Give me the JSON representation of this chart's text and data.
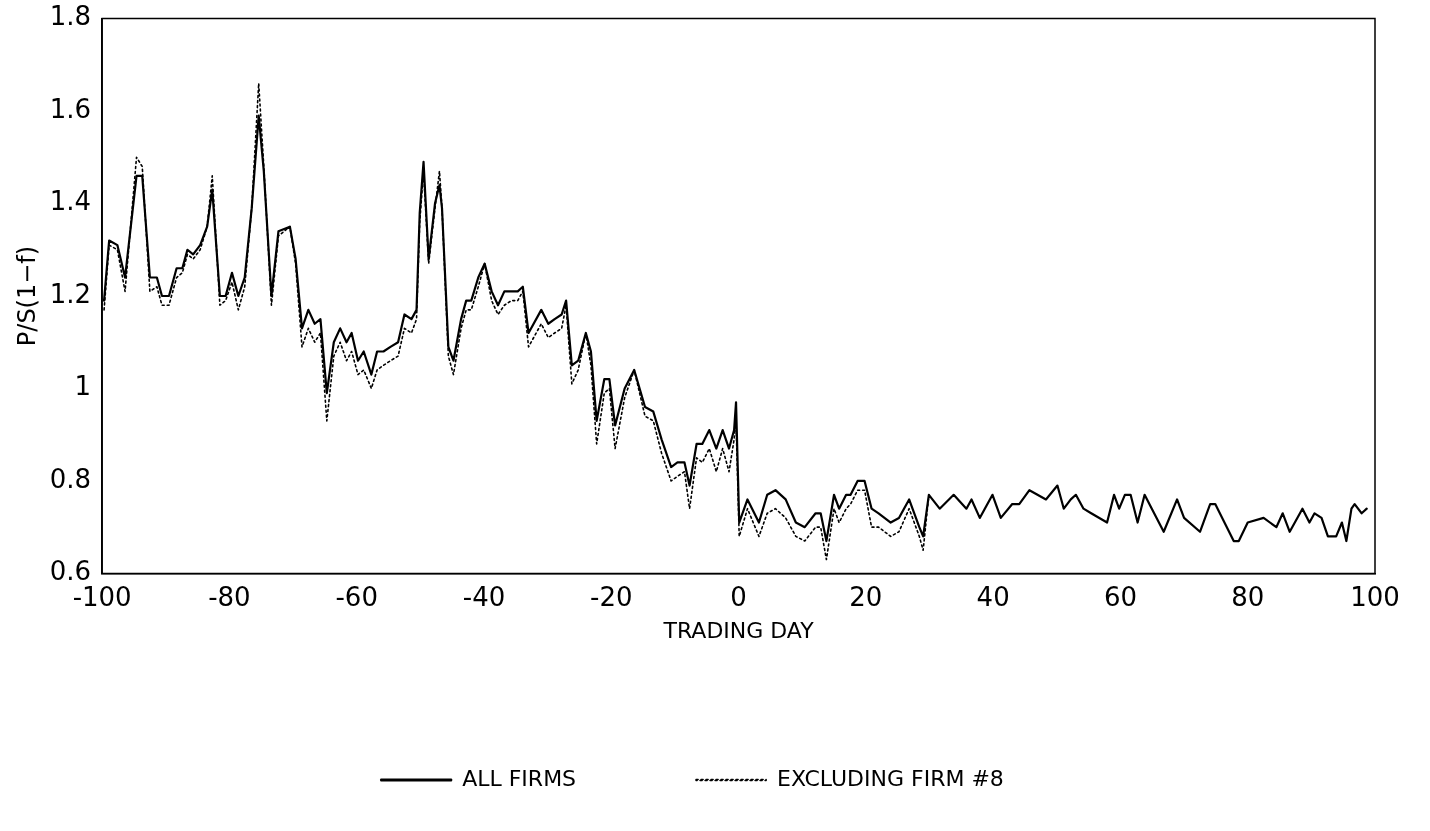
{
  "chart_data": {
    "type": "line",
    "xlabel": "TRADING DAY",
    "ylabel": "P/S(1−f)",
    "xlim": [
      -100,
      100
    ],
    "xticks": [
      -100,
      -80,
      -60,
      -40,
      -20,
      0,
      20,
      40,
      60,
      80,
      100
    ],
    "ylim": [
      0.6,
      1.8
    ],
    "yticks": [
      0.6,
      0.8,
      1,
      1.2,
      1.4,
      1.6,
      1.8
    ],
    "grid": false,
    "legend": "bottom",
    "marker": "none",
    "series": [
      {
        "name": "ALL FIRMS",
        "color": "#000000",
        "line_style": "solid",
        "x": [
          -99.7,
          -98.9,
          -97.6,
          -96.4,
          -94.6,
          -93.7,
          -92.5,
          -91.4,
          -90.6,
          -89.5,
          -88.3,
          -87.4,
          -86.6,
          -85.7,
          -84.6,
          -83.5,
          -82.7,
          -81.5,
          -80.6,
          -79.6,
          -78.6,
          -77.6,
          -76.5,
          -75.4,
          -74.6,
          -73.4,
          -72.3,
          -70.5,
          -69.6,
          -68.6,
          -67.6,
          -66.6,
          -65.7,
          -64.7,
          -63.6,
          -62.6,
          -61.6,
          -60.8,
          -59.8,
          -58.9,
          -57.7,
          -56.8,
          -55.8,
          -54.7,
          -53.5,
          -52.5,
          -51.4,
          -50.6,
          -50.1,
          -49.5,
          -48.7,
          -47.7,
          -47.0,
          -46.6,
          -45.6,
          -44.8,
          -43.6,
          -42.8,
          -42.0,
          -40.9,
          -39.9,
          -38.8,
          -37.8,
          -36.8,
          -35.7,
          -34.7,
          -33.9,
          -33.0,
          -31.0,
          -29.9,
          -28.9,
          -27.8,
          -27.1,
          -26.2,
          -25.2,
          -24.0,
          -23.2,
          -22.3,
          -21.1,
          -20.3,
          -19.4,
          -17.9,
          -16.4,
          -14.7,
          -13.4,
          -12.1,
          -10.6,
          -9.6,
          -8.5,
          -7.7,
          -6.6,
          -5.7,
          -4.6,
          -3.5,
          -2.5,
          -1.5,
          -0.7,
          -0.4,
          0.1,
          1.4,
          3.2,
          4.5,
          5.8,
          7.4,
          9.0,
          10.4,
          12.1,
          12.9,
          13.8,
          15.0,
          15.8,
          16.9,
          17.6,
          18.7,
          19.8,
          20.9,
          22.0,
          23.9,
          25.2,
          26.8,
          28.4,
          29.0,
          29.9,
          31.6,
          33.8,
          35.8,
          36.6,
          37.9,
          39.9,
          41.2,
          43.0,
          44.1,
          45.7,
          48.3,
          50.1,
          51.1,
          52.2,
          53.0,
          54.2,
          55.4,
          57.9,
          59.0,
          59.8,
          60.7,
          61.6,
          62.7,
          63.8,
          66.8,
          68.9,
          70.0,
          72.5,
          74.1,
          74.9,
          77.8,
          78.6,
          80.0,
          82.5,
          84.5,
          85.5,
          86.6,
          88.6,
          89.7,
          90.5,
          91.6,
          92.6,
          93.9,
          94.8,
          95.5,
          96.3,
          96.8,
          97.9,
          98.7
        ],
        "values": [
          1.19,
          1.32,
          1.31,
          1.24,
          1.46,
          1.46,
          1.24,
          1.24,
          1.2,
          1.2,
          1.26,
          1.26,
          1.3,
          1.29,
          1.31,
          1.35,
          1.43,
          1.2,
          1.2,
          1.25,
          1.2,
          1.24,
          1.39,
          1.59,
          1.47,
          1.2,
          1.34,
          1.35,
          1.28,
          1.13,
          1.17,
          1.14,
          1.15,
          0.99,
          1.1,
          1.13,
          1.1,
          1.12,
          1.06,
          1.08,
          1.03,
          1.08,
          1.08,
          1.09,
          1.1,
          1.16,
          1.15,
          1.17,
          1.38,
          1.49,
          1.28,
          1.4,
          1.44,
          1.39,
          1.09,
          1.06,
          1.15,
          1.19,
          1.19,
          1.24,
          1.27,
          1.21,
          1.18,
          1.21,
          1.21,
          1.21,
          1.22,
          1.12,
          1.17,
          1.14,
          1.15,
          1.16,
          1.19,
          1.05,
          1.06,
          1.12,
          1.08,
          0.93,
          1.02,
          1.02,
          0.92,
          1.0,
          1.04,
          0.96,
          0.95,
          0.89,
          0.83,
          0.84,
          0.84,
          0.79,
          0.88,
          0.88,
          0.91,
          0.87,
          0.91,
          0.87,
          0.91,
          0.97,
          0.71,
          0.76,
          0.71,
          0.77,
          0.78,
          0.76,
          0.71,
          0.7,
          0.73,
          0.73,
          0.67,
          0.77,
          0.74,
          0.77,
          0.77,
          0.8,
          0.8,
          0.74,
          0.73,
          0.71,
          0.72,
          0.76,
          0.7,
          0.68,
          0.77,
          0.74,
          0.77,
          0.74,
          0.76,
          0.72,
          0.77,
          0.72,
          0.75,
          0.75,
          0.78,
          0.76,
          0.79,
          0.74,
          0.76,
          0.77,
          0.74,
          0.73,
          0.71,
          0.77,
          0.74,
          0.77,
          0.77,
          0.71,
          0.77,
          0.69,
          0.76,
          0.72,
          0.69,
          0.75,
          0.75,
          0.67,
          0.67,
          0.71,
          0.72,
          0.7,
          0.73,
          0.69,
          0.74,
          0.71,
          0.73,
          0.72,
          0.68,
          0.68,
          0.71,
          0.67,
          0.74,
          0.75,
          0.73,
          0.74
        ]
      },
      {
        "name": "EXCLUDING FIRM #8",
        "color": "#000000",
        "line_style": "dotted",
        "x": [
          -99.7,
          -98.9,
          -97.6,
          -96.4,
          -94.6,
          -93.7,
          -92.5,
          -91.4,
          -90.6,
          -89.5,
          -88.3,
          -87.4,
          -86.6,
          -85.7,
          -84.6,
          -83.5,
          -82.7,
          -81.5,
          -80.6,
          -79.6,
          -78.6,
          -77.6,
          -76.5,
          -75.4,
          -74.6,
          -73.4,
          -72.3,
          -70.5,
          -69.6,
          -68.6,
          -67.6,
          -66.6,
          -65.7,
          -64.7,
          -63.6,
          -62.6,
          -61.6,
          -60.8,
          -59.8,
          -58.9,
          -57.7,
          -56.8,
          -55.8,
          -54.7,
          -53.5,
          -52.5,
          -51.4,
          -50.6,
          -50.1,
          -49.5,
          -48.7,
          -47.7,
          -47.0,
          -46.6,
          -45.6,
          -44.8,
          -43.6,
          -42.8,
          -42.0,
          -40.9,
          -39.9,
          -38.8,
          -37.8,
          -36.8,
          -35.7,
          -34.7,
          -33.9,
          -33.0,
          -31.0,
          -29.9,
          -28.9,
          -27.8,
          -27.1,
          -26.2,
          -25.2,
          -24.0,
          -23.2,
          -22.3,
          -21.1,
          -20.3,
          -19.4,
          -17.9,
          -16.4,
          -14.7,
          -13.4,
          -12.1,
          -10.6,
          -9.6,
          -8.5,
          -7.7,
          -6.6,
          -5.7,
          -4.6,
          -3.5,
          -2.5,
          -1.5,
          -0.7,
          -0.4,
          0.1,
          1.4,
          3.2,
          4.5,
          5.8,
          7.4,
          9.0,
          10.4,
          12.1,
          12.9,
          13.8,
          15.0,
          15.8,
          16.9,
          17.6,
          18.7,
          19.8,
          20.9,
          22.0,
          23.9,
          25.2,
          26.8,
          28.4,
          29.0,
          29.9
        ],
        "values": [
          1.17,
          1.31,
          1.3,
          1.21,
          1.5,
          1.48,
          1.21,
          1.22,
          1.18,
          1.18,
          1.24,
          1.25,
          1.29,
          1.28,
          1.3,
          1.35,
          1.46,
          1.18,
          1.19,
          1.23,
          1.17,
          1.22,
          1.39,
          1.66,
          1.48,
          1.18,
          1.33,
          1.35,
          1.27,
          1.09,
          1.13,
          1.1,
          1.12,
          0.93,
          1.07,
          1.1,
          1.06,
          1.08,
          1.03,
          1.04,
          1.0,
          1.04,
          1.05,
          1.06,
          1.07,
          1.13,
          1.12,
          1.15,
          1.36,
          1.47,
          1.27,
          1.39,
          1.47,
          1.39,
          1.07,
          1.03,
          1.13,
          1.17,
          1.17,
          1.22,
          1.27,
          1.19,
          1.16,
          1.18,
          1.19,
          1.19,
          1.21,
          1.09,
          1.14,
          1.11,
          1.12,
          1.13,
          1.18,
          1.01,
          1.04,
          1.12,
          1.05,
          0.88,
          0.99,
          1.0,
          0.87,
          0.98,
          1.04,
          0.94,
          0.93,
          0.86,
          0.8,
          0.81,
          0.82,
          0.74,
          0.85,
          0.84,
          0.87,
          0.82,
          0.87,
          0.82,
          0.89,
          0.93,
          0.68,
          0.74,
          0.68,
          0.73,
          0.74,
          0.72,
          0.68,
          0.67,
          0.7,
          0.7,
          0.63,
          0.74,
          0.71,
          0.74,
          0.75,
          0.78,
          0.78,
          0.7,
          0.7,
          0.68,
          0.69,
          0.74,
          0.68,
          0.65,
          0.77
        ]
      }
    ]
  }
}
